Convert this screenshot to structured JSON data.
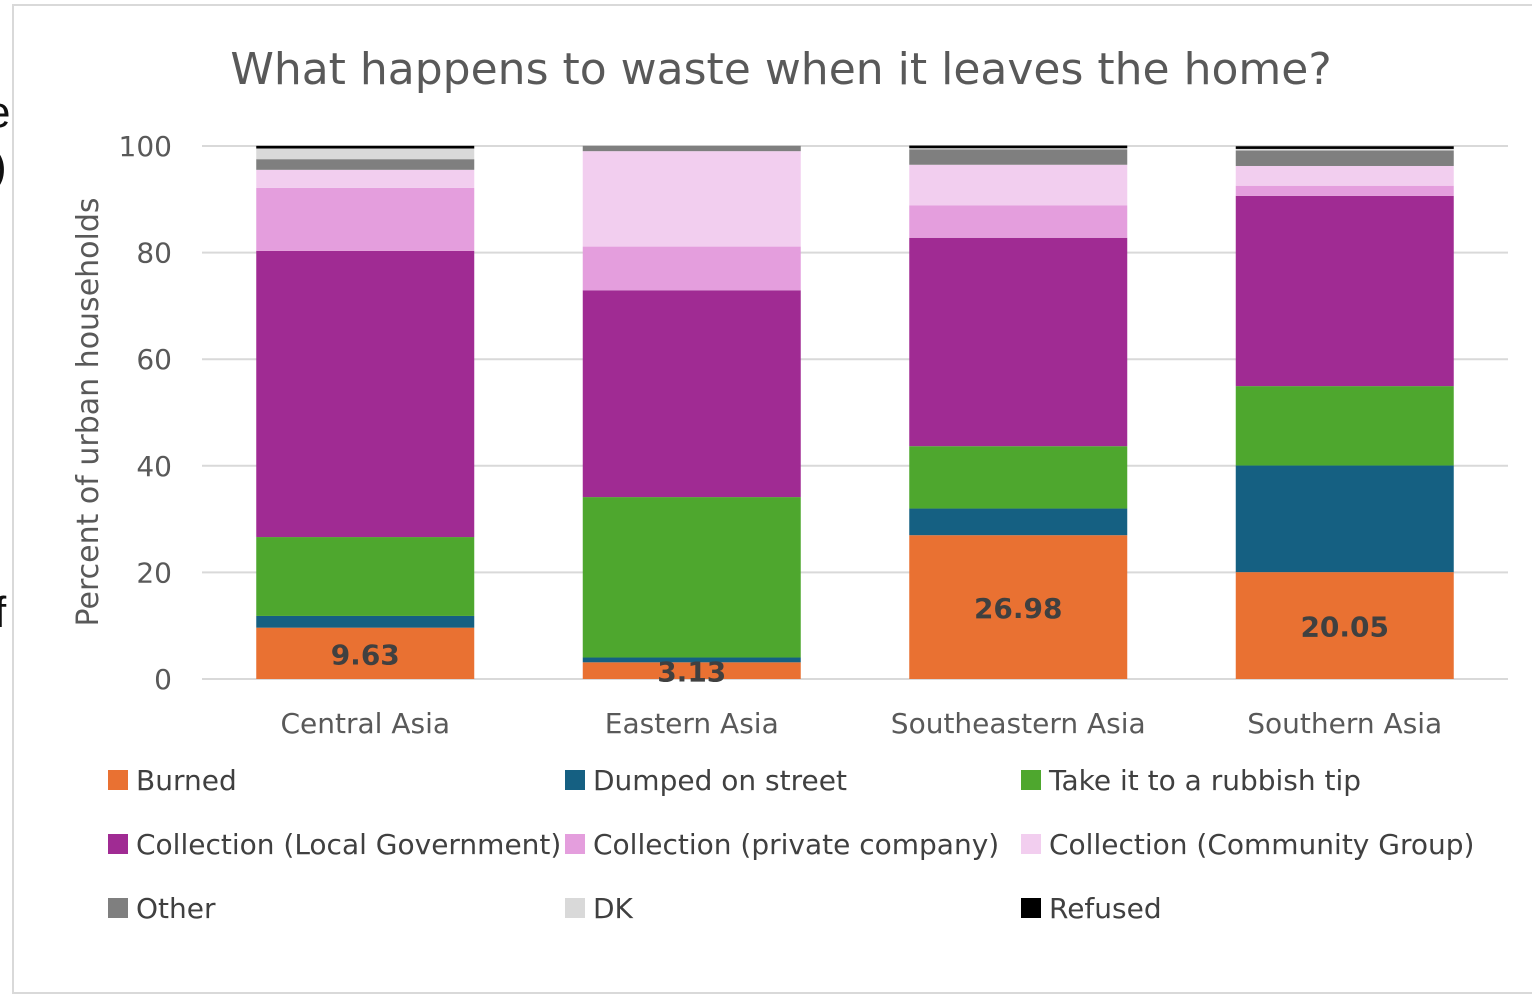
{
  "left_edge_glyphs": [
    "e",
    ")",
    "f"
  ],
  "chart_data": {
    "type": "bar",
    "stacked": true,
    "title": "What happens to waste when it leaves the home?",
    "ylabel": "Percent of urban households",
    "xlabel": "",
    "ylim": [
      0,
      100
    ],
    "yticks": [
      0,
      20,
      40,
      60,
      80,
      100
    ],
    "grid": true,
    "legend_position": "bottom",
    "categories": [
      "Central Asia",
      "Eastern Asia",
      "Southeastern Asia",
      "Southern Asia"
    ],
    "series": [
      {
        "name": "Burned",
        "color": "#E97132",
        "values": [
          9.63,
          3.13,
          26.98,
          20.05
        ],
        "labels": [
          "9.63",
          "3.13",
          "26.98",
          "20.05"
        ]
      },
      {
        "name": "Dumped on street",
        "color": "#156082",
        "values": [
          2.2,
          0.9,
          5.0,
          20.0
        ]
      },
      {
        "name": "Take it to a rubbish tip",
        "color": "#4EA72E",
        "values": [
          14.8,
          30.1,
          11.7,
          14.9
        ]
      },
      {
        "name": "Collection (Local Government)",
        "color": "#A02B93",
        "values": [
          53.7,
          38.8,
          39.1,
          35.7
        ]
      },
      {
        "name": "Collection (private company)",
        "color": "#E49EDD",
        "values": [
          11.8,
          8.2,
          6.1,
          1.9
        ]
      },
      {
        "name": "Collection (Community Group)",
        "color": "#F2CEEF",
        "values": [
          3.4,
          17.9,
          7.6,
          3.7
        ]
      },
      {
        "name": "Other",
        "color": "#7F7F7F",
        "values": [
          2.0,
          1.0,
          2.9,
          2.9
        ]
      },
      {
        "name": "DK",
        "color": "#D9D9D9",
        "values": [
          2.0,
          0.0,
          0.2,
          0.3
        ]
      },
      {
        "name": "Refused",
        "color": "#000000",
        "values": [
          0.5,
          0.0,
          0.5,
          0.5
        ]
      }
    ]
  }
}
